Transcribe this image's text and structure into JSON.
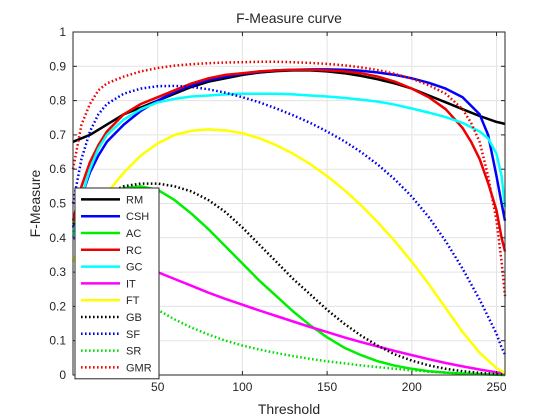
{
  "chart_data": {
    "type": "line",
    "title": "F-Measure curve",
    "xlabel": "Threshold",
    "ylabel": "F-Measure",
    "xlim": [
      0,
      255
    ],
    "ylim": [
      0,
      1
    ],
    "grid": true,
    "legend_position": "bottom-left",
    "xticks": [
      50,
      100,
      150,
      200,
      250
    ],
    "yticks": [
      0,
      0.1,
      0.2,
      0.3,
      0.4,
      0.5,
      0.6,
      0.7,
      0.8,
      0.9,
      1
    ],
    "series": [
      {
        "name": "RM",
        "color": "#000000",
        "style": "solid",
        "x": [
          0,
          10,
          20,
          30,
          40,
          50,
          60,
          70,
          80,
          90,
          100,
          110,
          120,
          130,
          140,
          150,
          160,
          170,
          180,
          190,
          200,
          210,
          220,
          230,
          240,
          250,
          255
        ],
        "y": [
          0.68,
          0.7,
          0.73,
          0.76,
          0.78,
          0.8,
          0.82,
          0.84,
          0.855,
          0.865,
          0.875,
          0.882,
          0.886,
          0.888,
          0.888,
          0.885,
          0.88,
          0.872,
          0.862,
          0.85,
          0.835,
          0.815,
          0.795,
          0.775,
          0.755,
          0.738,
          0.732
        ]
      },
      {
        "name": "CSH",
        "color": "#0000ff",
        "style": "solid",
        "x": [
          0,
          5,
          10,
          15,
          20,
          30,
          40,
          50,
          60,
          70,
          80,
          90,
          100,
          110,
          120,
          130,
          140,
          150,
          160,
          170,
          180,
          190,
          200,
          210,
          220,
          230,
          240,
          245,
          250,
          253,
          255
        ],
        "y": [
          0.43,
          0.52,
          0.59,
          0.64,
          0.68,
          0.73,
          0.77,
          0.8,
          0.825,
          0.845,
          0.86,
          0.87,
          0.878,
          0.884,
          0.888,
          0.89,
          0.891,
          0.891,
          0.89,
          0.887,
          0.882,
          0.875,
          0.865,
          0.852,
          0.835,
          0.81,
          0.76,
          0.7,
          0.58,
          0.5,
          0.45
        ]
      },
      {
        "name": "AC",
        "color": "#00ee00",
        "style": "solid",
        "x": [
          0,
          10,
          20,
          30,
          40,
          50,
          60,
          70,
          80,
          90,
          100,
          110,
          120,
          130,
          140,
          150,
          160,
          170,
          180,
          190,
          200,
          210,
          220,
          230,
          240,
          250,
          255
        ],
        "y": [
          0.44,
          0.5,
          0.53,
          0.545,
          0.55,
          0.54,
          0.51,
          0.47,
          0.425,
          0.375,
          0.325,
          0.275,
          0.23,
          0.185,
          0.145,
          0.11,
          0.08,
          0.058,
          0.04,
          0.027,
          0.018,
          0.011,
          0.007,
          0.004,
          0.002,
          0.001,
          0
        ]
      },
      {
        "name": "RC",
        "color": "#ee0000",
        "style": "solid",
        "x": [
          0,
          5,
          10,
          15,
          20,
          30,
          40,
          50,
          60,
          70,
          80,
          90,
          100,
          110,
          120,
          130,
          140,
          150,
          160,
          170,
          180,
          190,
          200,
          210,
          220,
          230,
          235,
          240,
          245,
          250,
          253,
          255
        ],
        "y": [
          0.45,
          0.55,
          0.62,
          0.67,
          0.71,
          0.76,
          0.79,
          0.81,
          0.83,
          0.85,
          0.865,
          0.875,
          0.88,
          0.885,
          0.888,
          0.89,
          0.89,
          0.888,
          0.885,
          0.88,
          0.87,
          0.855,
          0.835,
          0.81,
          0.775,
          0.72,
          0.68,
          0.63,
          0.56,
          0.48,
          0.4,
          0.36
        ]
      },
      {
        "name": "GC",
        "color": "#00ffff",
        "style": "solid",
        "x": [
          0,
          5,
          10,
          15,
          20,
          30,
          40,
          50,
          60,
          70,
          80,
          90,
          100,
          110,
          120,
          130,
          140,
          150,
          160,
          170,
          180,
          190,
          200,
          210,
          220,
          230,
          240,
          245,
          250,
          253,
          255
        ],
        "y": [
          0.4,
          0.52,
          0.6,
          0.66,
          0.7,
          0.745,
          0.775,
          0.795,
          0.805,
          0.812,
          0.815,
          0.818,
          0.82,
          0.82,
          0.82,
          0.818,
          0.815,
          0.812,
          0.808,
          0.803,
          0.797,
          0.788,
          0.777,
          0.765,
          0.752,
          0.735,
          0.71,
          0.69,
          0.645,
          0.58,
          0.49
        ]
      },
      {
        "name": "IT",
        "color": "#ff00ff",
        "style": "solid",
        "x": [
          0,
          10,
          20,
          30,
          40,
          50,
          60,
          70,
          80,
          90,
          100,
          110,
          120,
          130,
          140,
          150,
          160,
          170,
          180,
          190,
          200,
          210,
          220,
          230,
          240,
          250,
          255
        ],
        "y": [
          0.4,
          0.38,
          0.36,
          0.34,
          0.32,
          0.3,
          0.28,
          0.26,
          0.24,
          0.222,
          0.205,
          0.188,
          0.172,
          0.156,
          0.14,
          0.125,
          0.11,
          0.096,
          0.083,
          0.07,
          0.058,
          0.046,
          0.035,
          0.025,
          0.016,
          0.008,
          0.004
        ]
      },
      {
        "name": "FT",
        "color": "#ffff00",
        "style": "solid",
        "x": [
          0,
          10,
          20,
          30,
          40,
          50,
          60,
          70,
          80,
          90,
          100,
          110,
          120,
          130,
          140,
          150,
          160,
          170,
          180,
          190,
          200,
          210,
          220,
          230,
          240,
          250,
          255
        ],
        "y": [
          0.33,
          0.45,
          0.53,
          0.59,
          0.64,
          0.675,
          0.7,
          0.712,
          0.716,
          0.713,
          0.705,
          0.69,
          0.67,
          0.645,
          0.615,
          0.58,
          0.54,
          0.495,
          0.445,
          0.39,
          0.33,
          0.265,
          0.195,
          0.125,
          0.065,
          0.02,
          0.005
        ]
      },
      {
        "name": "GB",
        "color": "#000000",
        "style": "dotted",
        "x": [
          0,
          10,
          20,
          30,
          40,
          50,
          60,
          70,
          80,
          90,
          100,
          110,
          120,
          130,
          140,
          150,
          160,
          170,
          180,
          190,
          200,
          210,
          220,
          230,
          240,
          250,
          255
        ],
        "y": [
          0.44,
          0.5,
          0.53,
          0.55,
          0.558,
          0.558,
          0.55,
          0.535,
          0.51,
          0.475,
          0.43,
          0.38,
          0.33,
          0.28,
          0.235,
          0.19,
          0.15,
          0.115,
          0.085,
          0.06,
          0.042,
          0.028,
          0.018,
          0.011,
          0.006,
          0.002,
          0.001
        ]
      },
      {
        "name": "SF",
        "color": "#0000ee",
        "style": "dotted",
        "x": [
          0,
          5,
          10,
          15,
          20,
          30,
          40,
          50,
          60,
          70,
          80,
          90,
          100,
          110,
          120,
          130,
          140,
          150,
          160,
          170,
          180,
          190,
          200,
          210,
          220,
          230,
          240,
          245,
          250,
          253,
          255
        ],
        "y": [
          0.5,
          0.63,
          0.71,
          0.76,
          0.79,
          0.82,
          0.835,
          0.842,
          0.843,
          0.84,
          0.833,
          0.823,
          0.81,
          0.795,
          0.777,
          0.757,
          0.735,
          0.71,
          0.682,
          0.65,
          0.613,
          0.57,
          0.52,
          0.46,
          0.39,
          0.31,
          0.22,
          0.17,
          0.12,
          0.08,
          0.06
        ]
      },
      {
        "name": "SR",
        "color": "#00dd00",
        "style": "dotted",
        "x": [
          0,
          10,
          20,
          30,
          40,
          50,
          60,
          70,
          80,
          90,
          100,
          110,
          120,
          130,
          140,
          150,
          160,
          170,
          180,
          190,
          200,
          210,
          220,
          230,
          240,
          250,
          255
        ],
        "y": [
          0.42,
          0.35,
          0.3,
          0.26,
          0.225,
          0.19,
          0.162,
          0.138,
          0.118,
          0.1,
          0.086,
          0.074,
          0.064,
          0.055,
          0.047,
          0.04,
          0.034,
          0.028,
          0.023,
          0.018,
          0.014,
          0.01,
          0.007,
          0.005,
          0.003,
          0.001,
          0
        ]
      },
      {
        "name": "GMR",
        "color": "#ee0000",
        "style": "dotted",
        "x": [
          0,
          5,
          10,
          15,
          20,
          30,
          40,
          50,
          60,
          70,
          80,
          90,
          100,
          110,
          120,
          130,
          140,
          150,
          160,
          170,
          180,
          190,
          200,
          210,
          220,
          230,
          235,
          240,
          245,
          250,
          253,
          255
        ],
        "y": [
          0.6,
          0.73,
          0.79,
          0.83,
          0.85,
          0.87,
          0.885,
          0.895,
          0.902,
          0.906,
          0.909,
          0.911,
          0.912,
          0.913,
          0.913,
          0.912,
          0.91,
          0.907,
          0.903,
          0.897,
          0.889,
          0.878,
          0.864,
          0.845,
          0.82,
          0.775,
          0.735,
          0.68,
          0.58,
          0.45,
          0.33,
          0.23
        ]
      }
    ]
  }
}
